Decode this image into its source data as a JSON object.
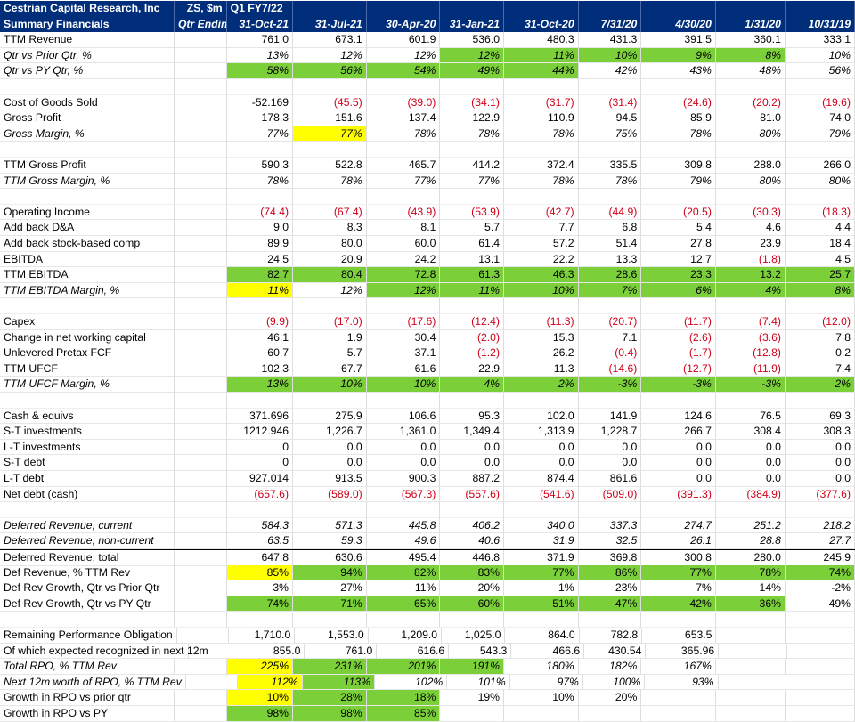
{
  "header": {
    "row1": [
      "Cestrian Capital Research, Inc",
      "ZS, $m",
      "Q1 FY7/22",
      "",
      "",
      "",
      "",
      "",
      "",
      "",
      ""
    ],
    "row2": [
      "Summary Financials",
      "Qtr Ending",
      "31-Oct-21",
      "31-Jul-21",
      "30-Apr-20",
      "31-Jan-21",
      "31-Oct-20",
      "7/31/20",
      "4/30/20",
      "1/31/20",
      "10/31/19"
    ]
  },
  "colors": {
    "header_bg": "#002e7a",
    "highlight_green": "#7bd03a",
    "highlight_yellow": "#ffff00",
    "negative_text": "#d0021b"
  },
  "rows": [
    {
      "label": "TTM Revenue",
      "values": [
        "761.0",
        "673.1",
        "601.9",
        "536.0",
        "480.3",
        "431.3",
        "391.5",
        "360.1",
        "333.1"
      ]
    },
    {
      "label": "Qtr vs Prior Qtr, %",
      "italic": true,
      "values": [
        "13%",
        "12%",
        "12%",
        "12%",
        "11%",
        "10%",
        "9%",
        "8%",
        "10%"
      ],
      "green": [
        3,
        4,
        5,
        6,
        7
      ]
    },
    {
      "label": "Qtr vs PY Qtr, %",
      "italic": true,
      "values": [
        "58%",
        "56%",
        "54%",
        "49%",
        "44%",
        "42%",
        "43%",
        "48%",
        "56%"
      ],
      "green": [
        0,
        1,
        2,
        3,
        4
      ]
    },
    {
      "blank": true
    },
    {
      "label": "Cost of Goods Sold",
      "values": [
        "-52.169",
        "(45.5)",
        "(39.0)",
        "(34.1)",
        "(31.7)",
        "(31.4)",
        "(24.6)",
        "(20.2)",
        "(19.6)"
      ],
      "neg": [
        1,
        2,
        3,
        4,
        5,
        6,
        7,
        8
      ]
    },
    {
      "label": "Gross Profit",
      "values": [
        "178.3",
        "151.6",
        "137.4",
        "122.9",
        "110.9",
        "94.5",
        "85.9",
        "81.0",
        "74.0"
      ]
    },
    {
      "label": "Gross Margin, %",
      "italic": true,
      "values": [
        "77%",
        "77%",
        "78%",
        "78%",
        "78%",
        "75%",
        "78%",
        "80%",
        "79%"
      ],
      "yellow": [
        1
      ]
    },
    {
      "blank": true
    },
    {
      "label": "TTM Gross Profit",
      "values": [
        "590.3",
        "522.8",
        "465.7",
        "414.2",
        "372.4",
        "335.5",
        "309.8",
        "288.0",
        "266.0"
      ]
    },
    {
      "label": "TTM Gross Margin, %",
      "italic": true,
      "values": [
        "78%",
        "78%",
        "77%",
        "77%",
        "78%",
        "78%",
        "79%",
        "80%",
        "80%"
      ]
    },
    {
      "blank": true
    },
    {
      "label": "Operating Income",
      "values": [
        "(74.4)",
        "(67.4)",
        "(43.9)",
        "(53.9)",
        "(42.7)",
        "(44.9)",
        "(20.5)",
        "(30.3)",
        "(18.3)"
      ],
      "neg": [
        0,
        1,
        2,
        3,
        4,
        5,
        6,
        7,
        8
      ]
    },
    {
      "label": "Add back D&A",
      "values": [
        "9.0",
        "8.3",
        "8.1",
        "5.7",
        "7.7",
        "6.8",
        "5.4",
        "4.6",
        "4.4"
      ]
    },
    {
      "label": "Add back stock-based comp",
      "values": [
        "89.9",
        "80.0",
        "60.0",
        "61.4",
        "57.2",
        "51.4",
        "27.8",
        "23.9",
        "18.4"
      ]
    },
    {
      "label": "EBITDA",
      "values": [
        "24.5",
        "20.9",
        "24.2",
        "13.1",
        "22.2",
        "13.3",
        "12.7",
        "(1.8)",
        "4.5"
      ],
      "neg": [
        7
      ]
    },
    {
      "label": "TTM EBITDA",
      "values": [
        "82.7",
        "80.4",
        "72.8",
        "61.3",
        "46.3",
        "28.6",
        "23.3",
        "13.2",
        "25.7"
      ],
      "green": [
        0,
        1,
        2,
        3,
        4,
        5,
        6,
        7,
        8
      ]
    },
    {
      "label": "TTM EBITDA Margin, %",
      "italic": true,
      "values": [
        "11%",
        "12%",
        "12%",
        "11%",
        "10%",
        "7%",
        "6%",
        "4%",
        "8%"
      ],
      "yellow": [
        0
      ],
      "green": [
        2,
        3,
        4,
        5,
        6,
        7,
        8
      ]
    },
    {
      "blank": true
    },
    {
      "label": "Capex",
      "values": [
        "(9.9)",
        "(17.0)",
        "(17.6)",
        "(12.4)",
        "(11.3)",
        "(20.7)",
        "(11.7)",
        "(7.4)",
        "(12.0)"
      ],
      "neg": [
        0,
        1,
        2,
        3,
        4,
        5,
        6,
        7,
        8
      ]
    },
    {
      "label": "Change in net working capital",
      "values": [
        "46.1",
        "1.9",
        "30.4",
        "(2.0)",
        "15.3",
        "7.1",
        "(2.6)",
        "(3.6)",
        "7.8"
      ],
      "neg": [
        3,
        6,
        7
      ]
    },
    {
      "label": "Unlevered Pretax FCF",
      "values": [
        "60.7",
        "5.7",
        "37.1",
        "(1.2)",
        "26.2",
        "(0.4)",
        "(1.7)",
        "(12.8)",
        "0.2"
      ],
      "neg": [
        3,
        5,
        6,
        7
      ]
    },
    {
      "label": "TTM UFCF",
      "values": [
        "102.3",
        "67.7",
        "61.6",
        "22.9",
        "11.3",
        "(14.6)",
        "(12.7)",
        "(11.9)",
        "7.4"
      ],
      "neg": [
        5,
        6,
        7
      ]
    },
    {
      "label": "TTM UFCF Margin, %",
      "italic": true,
      "values": [
        "13%",
        "10%",
        "10%",
        "4%",
        "2%",
        "-3%",
        "-3%",
        "-3%",
        "2%"
      ],
      "green": [
        0,
        1,
        2,
        3,
        4,
        5,
        6,
        7,
        8
      ]
    },
    {
      "blank": true
    },
    {
      "label": "Cash & equivs",
      "values": [
        "371.696",
        "275.9",
        "106.6",
        "95.3",
        "102.0",
        "141.9",
        "124.6",
        "76.5",
        "69.3"
      ]
    },
    {
      "label": "S-T investments",
      "values": [
        "1212.946",
        "1,226.7",
        "1,361.0",
        "1,349.4",
        "1,313.9",
        "1,228.7",
        "266.7",
        "308.4",
        "308.3"
      ]
    },
    {
      "label": "L-T investments",
      "values": [
        "0",
        "0.0",
        "0.0",
        "0.0",
        "0.0",
        "0.0",
        "0.0",
        "0.0",
        "0.0"
      ]
    },
    {
      "label": "S-T debt",
      "values": [
        "0",
        "0.0",
        "0.0",
        "0.0",
        "0.0",
        "0.0",
        "0.0",
        "0.0",
        "0.0"
      ]
    },
    {
      "label": "L-T debt",
      "values": [
        "927.014",
        "913.5",
        "900.3",
        "887.2",
        "874.4",
        "861.6",
        "0.0",
        "0.0",
        "0.0"
      ]
    },
    {
      "label": "Net debt (cash)",
      "values": [
        "(657.6)",
        "(589.0)",
        "(567.3)",
        "(557.6)",
        "(541.6)",
        "(509.0)",
        "(391.3)",
        "(384.9)",
        "(377.6)"
      ],
      "neg": [
        0,
        1,
        2,
        3,
        4,
        5,
        6,
        7,
        8
      ]
    },
    {
      "blank": true
    },
    {
      "label": "Deferred Revenue, current",
      "italic": true,
      "values": [
        "584.3",
        "571.3",
        "445.8",
        "406.2",
        "340.0",
        "337.3",
        "274.7",
        "251.2",
        "218.2"
      ]
    },
    {
      "label": "Deferred Revenue, non-current",
      "italic": true,
      "values": [
        "63.5",
        "59.3",
        "49.6",
        "40.6",
        "31.9",
        "32.5",
        "26.1",
        "28.8",
        "27.7"
      ]
    },
    {
      "label": "Deferred Revenue, total",
      "values": [
        "647.8",
        "630.6",
        "495.4",
        "446.8",
        "371.9",
        "369.8",
        "300.8",
        "280.0",
        "245.9"
      ],
      "thick": true
    },
    {
      "label": "Def Revenue, % TTM Rev",
      "values": [
        "85%",
        "94%",
        "82%",
        "83%",
        "77%",
        "86%",
        "77%",
        "78%",
        "74%"
      ],
      "yellow": [
        0
      ],
      "green": [
        1,
        2,
        3,
        4,
        5,
        6,
        7,
        8
      ]
    },
    {
      "label": "Def Rev Growth, Qtr vs Prior Qtr",
      "values": [
        "3%",
        "27%",
        "11%",
        "20%",
        "1%",
        "23%",
        "7%",
        "14%",
        "-2%"
      ]
    },
    {
      "label": "Def Rev Growth, Qtr vs PY Qtr",
      "values": [
        "74%",
        "71%",
        "65%",
        "60%",
        "51%",
        "47%",
        "42%",
        "36%",
        "49%"
      ],
      "green": [
        0,
        1,
        2,
        3,
        4,
        5,
        6,
        7
      ]
    },
    {
      "blank": true
    },
    {
      "label": "Remaining Performance Obligation",
      "values": [
        "1,710.0",
        "1,553.0",
        "1,209.0",
        "1,025.0",
        "864.0",
        "782.8",
        "653.5",
        "",
        ""
      ]
    },
    {
      "label": "Of which expected recognized in next 12m",
      "values": [
        "855.0",
        "761.0",
        "616.6",
        "543.3",
        "466.6",
        "430.54",
        "365.96",
        "",
        ""
      ]
    },
    {
      "label": "Total RPO, % TTM Rev",
      "italic": true,
      "values": [
        "225%",
        "231%",
        "201%",
        "191%",
        "180%",
        "182%",
        "167%",
        "",
        ""
      ],
      "yellow": [
        0
      ],
      "green": [
        1,
        2,
        3
      ]
    },
    {
      "label": "Next 12m worth of RPO, % TTM Rev",
      "italic": true,
      "values": [
        "112%",
        "113%",
        "102%",
        "101%",
        "97%",
        "100%",
        "93%",
        "",
        ""
      ],
      "yellow": [
        0
      ],
      "green": [
        1
      ]
    },
    {
      "label": "Growth in RPO vs prior qtr",
      "values": [
        "10%",
        "28%",
        "18%",
        "19%",
        "10%",
        "20%",
        "",
        "",
        ""
      ],
      "yellow": [
        0
      ],
      "green": [
        1,
        2
      ]
    },
    {
      "label": "Growth in RPO vs PY",
      "values": [
        "98%",
        "98%",
        "85%",
        "",
        "",
        "",
        "",
        "",
        ""
      ],
      "green": [
        0,
        1,
        2
      ]
    }
  ]
}
